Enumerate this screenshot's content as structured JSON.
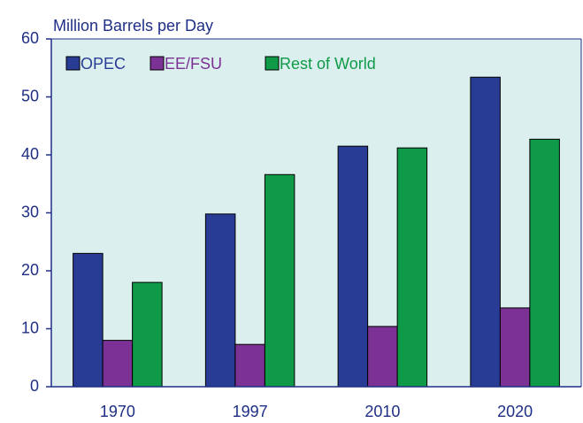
{
  "chart_data": {
    "type": "bar",
    "y_label": "Million Barrels per Day",
    "categories": [
      "1970",
      "1997",
      "2010",
      "2020"
    ],
    "series": [
      {
        "name": "OPEC",
        "color": "#283c96",
        "values": [
          23,
          29.8,
          41.5,
          53.4
        ]
      },
      {
        "name": "EE/FSU",
        "color": "#7b3294",
        "values": [
          8,
          7.3,
          10.4,
          13.6
        ]
      },
      {
        "name": "Rest of World",
        "color": "#0f9a48",
        "values": [
          18,
          36.6,
          41.2,
          42.7
        ]
      }
    ],
    "ylim": [
      0,
      60
    ],
    "yticks": [
      0,
      10,
      20,
      30,
      40,
      50,
      60
    ],
    "legend": "top-left",
    "plot_background": "#dcefef"
  }
}
